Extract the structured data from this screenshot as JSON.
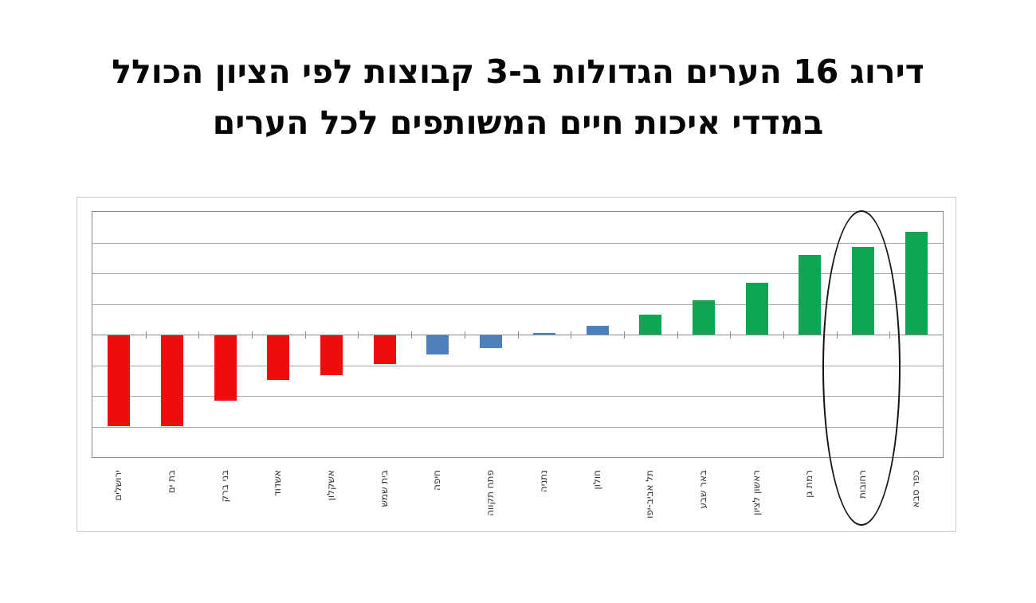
{
  "title": {
    "line1": "דירוג 16 הערים הגדולות ב-3 קבוצות לפי הציון הכולל",
    "line2": "במדדי איכות חיים המשותפים לכל הערים"
  },
  "chart_data": {
    "type": "bar",
    "title": "דירוג 16 הערים הגדולות ב-3 קבוצות לפי הציון הכולל במדדי איכות חיים המשותפים לכל הערים",
    "categories": [
      "ירושלים",
      "בת ים",
      "בני ברק",
      "אשדוד",
      "אשקלון",
      "בית שמש",
      "חיפה",
      "פתח תקווה",
      "נתניה",
      "חולון",
      "תל אביב-יפו",
      "באר שבע",
      "ראשון לציון",
      "רמת גן",
      "רחובות",
      "כפר סבא"
    ],
    "values": [
      -2.95,
      -2.97,
      -2.12,
      -1.45,
      -1.29,
      -0.94,
      -0.62,
      -0.41,
      0.06,
      0.28,
      0.66,
      1.12,
      1.7,
      2.61,
      2.86,
      3.36
    ],
    "value_units": "gridline divisions (no numeric axis labels visible in chart)",
    "groups": [
      "low",
      "low",
      "low",
      "low",
      "low",
      "low",
      "middle",
      "middle",
      "middle",
      "middle",
      "high",
      "high",
      "high",
      "high",
      "high",
      "high"
    ],
    "group_colors": {
      "low": "#ee0d0d",
      "middle": "#4d7fbc",
      "high": "#0ca551"
    },
    "xlabel": "",
    "ylabel": "",
    "ylim": [
      -4,
      4
    ],
    "gridline_interval": 1,
    "grid": "horizontal gridlines on",
    "legend": "none",
    "axis_tick_labels": "none",
    "annotation": {
      "shape": "ellipse",
      "highlighted_category": "רחובות",
      "category_index": 14,
      "color": "#141414"
    }
  }
}
